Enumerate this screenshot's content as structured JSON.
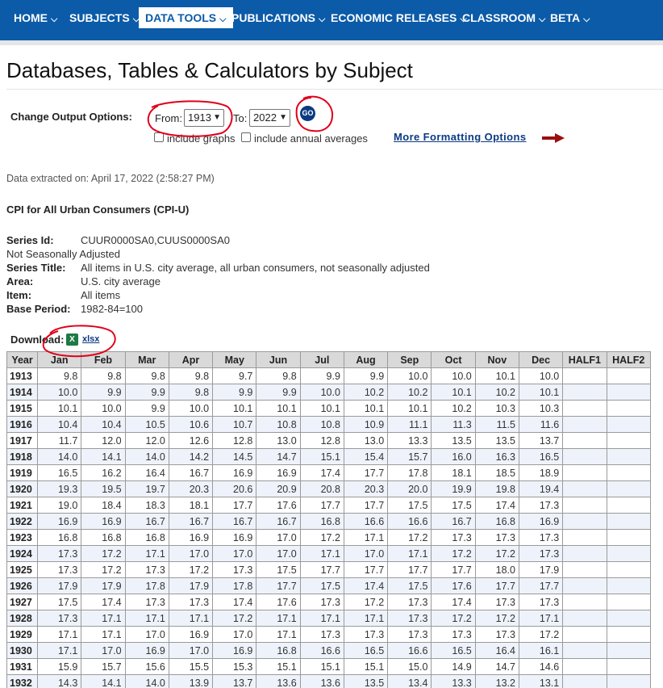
{
  "nav": {
    "items": [
      {
        "label": "HOME"
      },
      {
        "label": "SUBJECTS"
      },
      {
        "label": "DATA TOOLS"
      },
      {
        "label": "PUBLICATIONS"
      },
      {
        "label": "ECONOMIC RELEASES"
      },
      {
        "label": "CLASSROOM"
      },
      {
        "label": "BETA"
      }
    ],
    "active_index": 2,
    "color": "#0b5ba8"
  },
  "page": {
    "title": "Databases, Tables & Calculators by Subject"
  },
  "options": {
    "label": "Change Output Options:",
    "from_label": "From:",
    "from_value": "1913",
    "to_label": "To:",
    "to_value": "2022",
    "go_label": "GO",
    "include_graphs": "include graphs",
    "include_annual_averages": "include annual averages",
    "more_formatting": "More Formatting Options"
  },
  "extracted": "Data extracted on: April 17, 2022 (2:58:27 PM)",
  "series": {
    "heading": "CPI for All Urban Consumers (CPI-U)",
    "id_label": "Series Id:",
    "id_value": "CUUR0000SA0,CUUS0000SA0",
    "adjustment": "Not Seasonally Adjusted",
    "title_label": "Series Title:",
    "title_value": "All items in U.S. city average, all urban consumers, not seasonally adjusted",
    "area_label": "Area:",
    "area_value": "U.S. city average",
    "item_label": "Item:",
    "item_value": "All items",
    "base_label": "Base Period:",
    "base_value": "1982-84=100"
  },
  "download": {
    "label": "Download:",
    "icon": "X",
    "link": "xlsx"
  },
  "table": {
    "headers": [
      "Year",
      "Jan",
      "Feb",
      "Mar",
      "Apr",
      "May",
      "Jun",
      "Jul",
      "Aug",
      "Sep",
      "Oct",
      "Nov",
      "Dec",
      "HALF1",
      "HALF2"
    ],
    "rows": [
      [
        "1913",
        "9.8",
        "9.8",
        "9.8",
        "9.8",
        "9.7",
        "9.8",
        "9.9",
        "9.9",
        "10.0",
        "10.0",
        "10.1",
        "10.0",
        "",
        ""
      ],
      [
        "1914",
        "10.0",
        "9.9",
        "9.9",
        "9.8",
        "9.9",
        "9.9",
        "10.0",
        "10.2",
        "10.2",
        "10.1",
        "10.2",
        "10.1",
        "",
        ""
      ],
      [
        "1915",
        "10.1",
        "10.0",
        "9.9",
        "10.0",
        "10.1",
        "10.1",
        "10.1",
        "10.1",
        "10.1",
        "10.2",
        "10.3",
        "10.3",
        "",
        ""
      ],
      [
        "1916",
        "10.4",
        "10.4",
        "10.5",
        "10.6",
        "10.7",
        "10.8",
        "10.8",
        "10.9",
        "11.1",
        "11.3",
        "11.5",
        "11.6",
        "",
        ""
      ],
      [
        "1917",
        "11.7",
        "12.0",
        "12.0",
        "12.6",
        "12.8",
        "13.0",
        "12.8",
        "13.0",
        "13.3",
        "13.5",
        "13.5",
        "13.7",
        "",
        ""
      ],
      [
        "1918",
        "14.0",
        "14.1",
        "14.0",
        "14.2",
        "14.5",
        "14.7",
        "15.1",
        "15.4",
        "15.7",
        "16.0",
        "16.3",
        "16.5",
        "",
        ""
      ],
      [
        "1919",
        "16.5",
        "16.2",
        "16.4",
        "16.7",
        "16.9",
        "16.9",
        "17.4",
        "17.7",
        "17.8",
        "18.1",
        "18.5",
        "18.9",
        "",
        ""
      ],
      [
        "1920",
        "19.3",
        "19.5",
        "19.7",
        "20.3",
        "20.6",
        "20.9",
        "20.8",
        "20.3",
        "20.0",
        "19.9",
        "19.8",
        "19.4",
        "",
        ""
      ],
      [
        "1921",
        "19.0",
        "18.4",
        "18.3",
        "18.1",
        "17.7",
        "17.6",
        "17.7",
        "17.7",
        "17.5",
        "17.5",
        "17.4",
        "17.3",
        "",
        ""
      ],
      [
        "1922",
        "16.9",
        "16.9",
        "16.7",
        "16.7",
        "16.7",
        "16.7",
        "16.8",
        "16.6",
        "16.6",
        "16.7",
        "16.8",
        "16.9",
        "",
        ""
      ],
      [
        "1923",
        "16.8",
        "16.8",
        "16.8",
        "16.9",
        "16.9",
        "17.0",
        "17.2",
        "17.1",
        "17.2",
        "17.3",
        "17.3",
        "17.3",
        "",
        ""
      ],
      [
        "1924",
        "17.3",
        "17.2",
        "17.1",
        "17.0",
        "17.0",
        "17.0",
        "17.1",
        "17.0",
        "17.1",
        "17.2",
        "17.2",
        "17.3",
        "",
        ""
      ],
      [
        "1925",
        "17.3",
        "17.2",
        "17.3",
        "17.2",
        "17.3",
        "17.5",
        "17.7",
        "17.7",
        "17.7",
        "17.7",
        "18.0",
        "17.9",
        "",
        ""
      ],
      [
        "1926",
        "17.9",
        "17.9",
        "17.8",
        "17.9",
        "17.8",
        "17.7",
        "17.5",
        "17.4",
        "17.5",
        "17.6",
        "17.7",
        "17.7",
        "",
        ""
      ],
      [
        "1927",
        "17.5",
        "17.4",
        "17.3",
        "17.3",
        "17.4",
        "17.6",
        "17.3",
        "17.2",
        "17.3",
        "17.4",
        "17.3",
        "17.3",
        "",
        ""
      ],
      [
        "1928",
        "17.3",
        "17.1",
        "17.1",
        "17.1",
        "17.2",
        "17.1",
        "17.1",
        "17.1",
        "17.3",
        "17.2",
        "17.2",
        "17.1",
        "",
        ""
      ],
      [
        "1929",
        "17.1",
        "17.1",
        "17.0",
        "16.9",
        "17.0",
        "17.1",
        "17.3",
        "17.3",
        "17.3",
        "17.3",
        "17.3",
        "17.2",
        "",
        ""
      ],
      [
        "1930",
        "17.1",
        "17.0",
        "16.9",
        "17.0",
        "16.9",
        "16.8",
        "16.6",
        "16.5",
        "16.6",
        "16.5",
        "16.4",
        "16.1",
        "",
        ""
      ],
      [
        "1931",
        "15.9",
        "15.7",
        "15.6",
        "15.5",
        "15.3",
        "15.1",
        "15.1",
        "15.1",
        "15.0",
        "14.9",
        "14.7",
        "14.6",
        "",
        ""
      ],
      [
        "1932",
        "14.3",
        "14.1",
        "14.0",
        "13.9",
        "13.7",
        "13.6",
        "13.6",
        "13.5",
        "13.4",
        "13.3",
        "13.2",
        "13.1",
        "",
        ""
      ]
    ]
  },
  "colors": {
    "nav_bg": "#0b5ba8",
    "link": "#0b3a82",
    "annotation_circle": "#e0001b",
    "row_alt": "#eef3fb"
  }
}
